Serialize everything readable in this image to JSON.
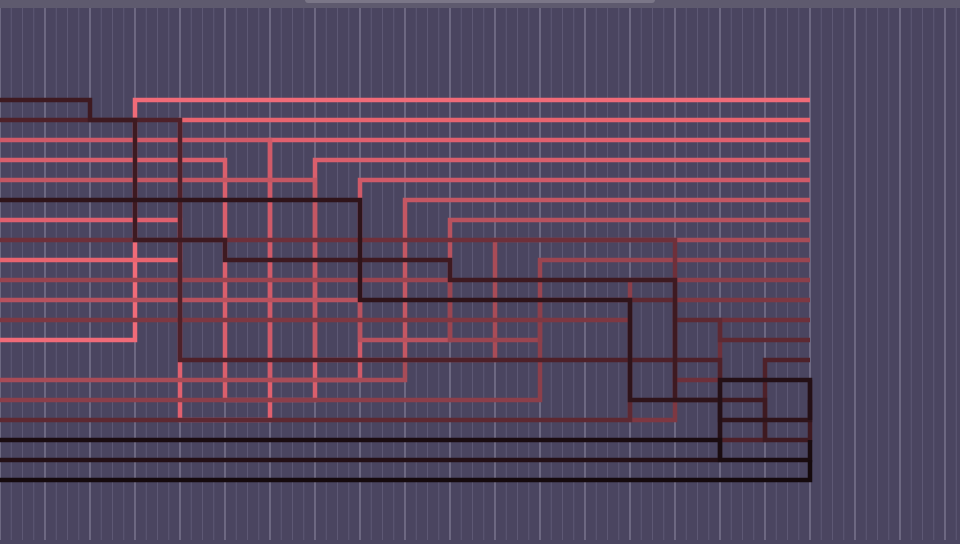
{
  "colors": {
    "background": "#4a4560",
    "grid_minor": "#5d5874",
    "grid_major": "#7c7790",
    "top_bar": "#5e5a6e"
  },
  "sorting_network": {
    "items": [
      {
        "color": "#f06b78",
        "lanes": [
          12,
          12,
          12,
          0,
          0,
          0,
          0,
          0,
          0,
          0,
          0,
          0,
          0,
          0,
          0,
          0,
          0,
          0,
          0
        ]
      },
      {
        "color": "#e8646f",
        "lanes": [
          8,
          8,
          8,
          8,
          1,
          1,
          1,
          1,
          1,
          1,
          1,
          1,
          1,
          1,
          1,
          1,
          1,
          1,
          1
        ]
      },
      {
        "color": "#e0606e",
        "lanes": [
          6,
          6,
          6,
          6,
          16,
          16,
          2,
          2,
          2,
          2,
          2,
          2,
          2,
          2,
          2,
          2,
          2,
          2,
          2
        ]
      },
      {
        "color": "#d95f6c",
        "lanes": [
          3,
          3,
          3,
          3,
          3,
          15,
          15,
          3,
          3,
          3,
          3,
          3,
          3,
          3,
          3,
          3,
          3,
          3,
          3
        ]
      },
      {
        "color": "#d05a68",
        "lanes": [
          2,
          2,
          2,
          2,
          2,
          2,
          14,
          14,
          4,
          4,
          4,
          4,
          4,
          4,
          4,
          4,
          4,
          4,
          4
        ]
      },
      {
        "color": "#c45763",
        "lanes": [
          4,
          4,
          4,
          4,
          4,
          4,
          4,
          13,
          13,
          5,
          5,
          5,
          5,
          5,
          5,
          5,
          5,
          5,
          5
        ]
      },
      {
        "color": "#b8525e",
        "lanes": [
          10,
          10,
          10,
          10,
          10,
          10,
          10,
          10,
          12,
          12,
          6,
          6,
          6,
          6,
          6,
          6,
          6,
          6,
          6
        ]
      },
      {
        "color": "#a84c57",
        "lanes": [
          14,
          14,
          14,
          14,
          14,
          14,
          14,
          14,
          14,
          13,
          13,
          7,
          7,
          7,
          7,
          7,
          7,
          7,
          7
        ]
      },
      {
        "color": "#9a4550",
        "lanes": [
          9,
          9,
          9,
          9,
          9,
          9,
          9,
          9,
          9,
          9,
          12,
          12,
          8,
          8,
          8,
          8,
          8,
          8,
          8
        ]
      },
      {
        "color": "#8c3f4a",
        "lanes": [
          15,
          15,
          15,
          15,
          15,
          15,
          15,
          15,
          15,
          15,
          15,
          15,
          10,
          10,
          9,
          9,
          9,
          9,
          9
        ]
      },
      {
        "color": "#7e3842",
        "lanes": [
          11,
          11,
          11,
          11,
          11,
          11,
          11,
          11,
          11,
          11,
          11,
          11,
          11,
          11,
          16,
          10,
          10,
          10,
          10
        ]
      },
      {
        "color": "#6e303a",
        "lanes": [
          7,
          7,
          7,
          7,
          7,
          7,
          7,
          7,
          7,
          7,
          7,
          7,
          7,
          7,
          7,
          14,
          11,
          11,
          11
        ]
      },
      {
        "color": "#5e2932",
        "lanes": [
          16,
          16,
          16,
          16,
          16,
          16,
          16,
          16,
          16,
          16,
          16,
          16,
          16,
          16,
          10,
          11,
          12,
          12,
          12
        ]
      },
      {
        "color": "#4e2129",
        "lanes": [
          1,
          1,
          1,
          1,
          13,
          13,
          13,
          13,
          13,
          13,
          13,
          13,
          13,
          13,
          13,
          13,
          17,
          13,
          13
        ]
      },
      {
        "color": "#3e1a21",
        "lanes": [
          0,
          0,
          1,
          7,
          7,
          8,
          8,
          8,
          8,
          8,
          9,
          9,
          9,
          9,
          9,
          15,
          15,
          17,
          14
        ]
      },
      {
        "color": "#2f141a",
        "lanes": [
          5,
          5,
          5,
          5,
          5,
          5,
          5,
          5,
          10,
          10,
          10,
          10,
          10,
          10,
          15,
          15,
          16,
          16,
          15
        ]
      },
      {
        "color": "#241016",
        "lanes": [
          18,
          18,
          18,
          18,
          18,
          18,
          18,
          18,
          18,
          18,
          18,
          18,
          18,
          18,
          18,
          18,
          14,
          14,
          16
        ]
      },
      {
        "color": "#1a0c10",
        "lanes": [
          17,
          17,
          17,
          17,
          17,
          17,
          17,
          17,
          17,
          17,
          17,
          17,
          17,
          17,
          17,
          17,
          18,
          18,
          17
        ]
      },
      {
        "color": "#150a0d",
        "lanes": [
          19,
          19,
          19,
          19,
          19,
          19,
          19,
          19,
          19,
          19,
          19,
          19,
          19,
          19,
          19,
          19,
          19,
          19,
          18
        ]
      }
    ]
  }
}
